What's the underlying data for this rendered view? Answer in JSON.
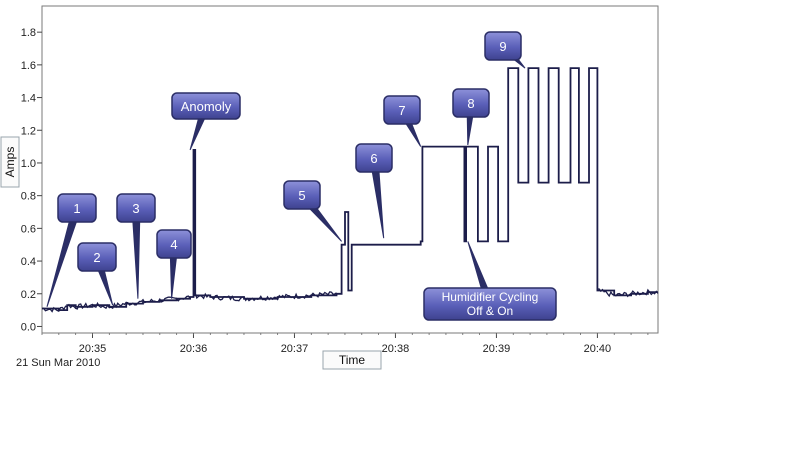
{
  "chart_data": {
    "type": "line",
    "xlabel": "Time",
    "ylabel": "Amps",
    "date_label": "21 Sun Mar 2010",
    "x_ticks": [
      "20:35",
      "20:36",
      "20:37",
      "20:38",
      "20:39",
      "20:40"
    ],
    "y_ticks": [
      "0.0",
      "0.2",
      "0.4",
      "0.6",
      "0.8",
      "1.0",
      "1.2",
      "1.4",
      "1.6",
      "1.8"
    ],
    "xlim": [
      "20:34:30",
      "20:40:36"
    ],
    "ylim": [
      -0.04,
      1.96
    ],
    "grid": false,
    "legend": "none",
    "series": [
      {
        "color": "#1c1d4a",
        "x": [
          "20:34:30",
          "20:34:40",
          "20:34:45",
          "20:34:50",
          "20:35:00",
          "20:35:10",
          "20:35:20",
          "20:35:30",
          "20:35:40",
          "20:35:50",
          "20:35:58",
          "20:36:00",
          "20:36:01",
          "20:36:10",
          "20:36:30",
          "20:36:50",
          "20:37:10",
          "20:37:25",
          "20:37:28",
          "20:37:30",
          "20:37:32",
          "20:37:34",
          "20:37:40",
          "20:38:00",
          "20:38:15",
          "20:38:16",
          "20:38:40",
          "20:38:41",
          "20:38:42",
          "20:38:48",
          "20:38:49",
          "20:38:54",
          "20:38:55",
          "20:39:00",
          "20:39:01",
          "20:39:06",
          "20:39:07",
          "20:39:12",
          "20:39:13",
          "20:39:18",
          "20:39:19",
          "20:39:24",
          "20:39:25",
          "20:39:30",
          "20:39:31",
          "20:39:36",
          "20:39:37",
          "20:39:43",
          "20:39:44",
          "20:39:48",
          "20:39:49",
          "20:39:54",
          "20:39:55",
          "20:40:00",
          "20:40:10",
          "20:40:20",
          "20:40:30",
          "20:40:36"
        ],
        "y": [
          0.11,
          0.1,
          0.13,
          0.12,
          0.13,
          0.12,
          0.14,
          0.15,
          0.16,
          0.17,
          0.18,
          1.08,
          0.19,
          0.18,
          0.17,
          0.18,
          0.19,
          0.2,
          0.5,
          0.7,
          0.22,
          0.5,
          0.5,
          0.5,
          0.52,
          1.1,
          1.1,
          0.52,
          1.1,
          1.1,
          0.52,
          0.52,
          1.1,
          1.1,
          0.52,
          0.52,
          1.58,
          1.58,
          0.88,
          0.88,
          1.58,
          1.58,
          0.88,
          0.88,
          1.58,
          1.58,
          0.88,
          0.88,
          1.58,
          1.58,
          0.88,
          0.88,
          1.58,
          0.22,
          0.19,
          0.2,
          0.21,
          0.21
        ]
      }
    ],
    "annotations": [
      {
        "label": "1",
        "x": "20:34:33",
        "y": 0.12
      },
      {
        "label": "2",
        "x": "20:35:12",
        "y": 0.13
      },
      {
        "label": "3",
        "x": "20:35:27",
        "y": 0.17
      },
      {
        "label": "4",
        "x": "20:35:47",
        "y": 0.17
      },
      {
        "label": "Anomoly",
        "x": "20:35:58",
        "y": 1.08
      },
      {
        "label": "5",
        "x": "20:37:28",
        "y": 0.52
      },
      {
        "label": "6",
        "x": "20:37:53",
        "y": 0.54
      },
      {
        "label": "7",
        "x": "20:38:15",
        "y": 1.1
      },
      {
        "label": "8",
        "x": "20:38:43",
        "y": 1.11
      },
      {
        "label": "9",
        "x": "20:39:17",
        "y": 1.58
      },
      {
        "label": "Humidifier Cycling Off & On",
        "lines": [
          "Humidifier Cycling",
          "Off & On"
        ],
        "x": "20:38:43",
        "y": 0.52
      }
    ]
  }
}
